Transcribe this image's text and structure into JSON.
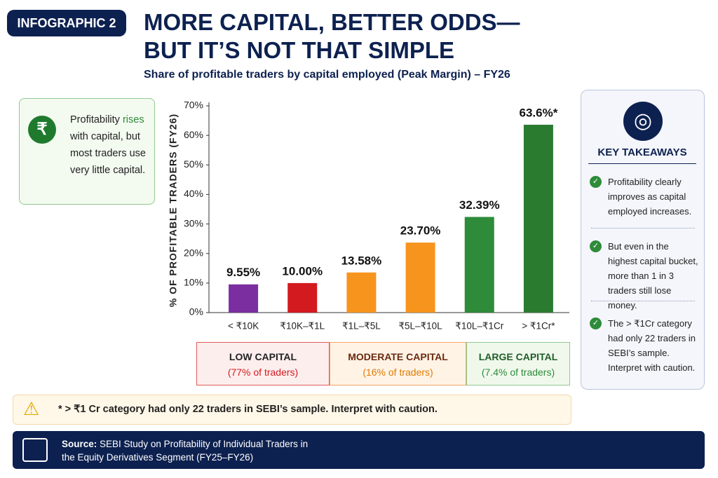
{
  "badge": "INFOGRAPHIC 2",
  "headline": [
    "MORE CAPITAL, BETTER ODDS—",
    "BUT IT’S NOT THAT SIMPLE"
  ],
  "callout": {
    "parts": [
      "Profitability ",
      "rises",
      " with capital, but most traders use very little capital."
    ]
  },
  "chart_data": {
    "type": "bar",
    "title": "Share of profitable traders by capital employed (Peak Margin) – FY26",
    "y_label": "% OF PROFITABLE TRADERS (FY26)",
    "categories": [
      "< ₹10K",
      "₹10K–₹1L",
      "₹1L–₹5L",
      "₹5L–₹10L",
      "₹10L–₹1Cr",
      "> ₹1Cr*"
    ],
    "values": [
      9.55,
      10.0,
      13.58,
      23.7,
      32.39,
      63.6
    ],
    "value_labels": [
      "9.55%",
      "10.00%",
      "13.58%",
      "23.70%",
      "32.39%",
      "63.6%*"
    ],
    "colors": [
      "#7a2ea0",
      "#d21a1f",
      "#f7941d",
      "#f7941d",
      "#2e8b3a",
      "#2a7b30"
    ],
    "ylim": [
      0,
      70
    ],
    "yticks": [
      {
        "value": 0,
        "label": "0%"
      },
      {
        "value": 10,
        "label": "10%"
      },
      {
        "value": 20,
        "label": "20%"
      },
      {
        "value": 30,
        "label": "30%"
      },
      {
        "value": 40,
        "label": "40%"
      },
      {
        "value": 50,
        "label": "50%"
      },
      {
        "value": 60,
        "label": "60%"
      },
      {
        "value": 70,
        "label": "70%"
      }
    ],
    "grid": false
  },
  "groups": [
    {
      "name": "LOW CAPITAL",
      "share": "(77% of traders)"
    },
    {
      "name": "MODERATE CAPITAL",
      "share": "(16% of traders)"
    },
    {
      "name": "LARGE CAPITAL",
      "share": "(7.4% of traders)"
    }
  ],
  "takeaways": {
    "title": "KEY TAKEAWAYS",
    "items": [
      "Profitability clearly improves as capital employed increases.",
      "But even in the highest capital bucket, more than 1 in 3 traders still lose money.",
      "The > ₹1Cr category had only 22 traders in SEBI’s sample. Interpret with caution."
    ]
  },
  "footnote": "* > ₹1 Cr category had only 22 traders in SEBI’s sample. Interpret with caution.",
  "source": {
    "label": "Source:",
    "text": "SEBI Study on Profitability of Individual Traders in the Equity Derivatives Segment (FY25–FY26)"
  }
}
